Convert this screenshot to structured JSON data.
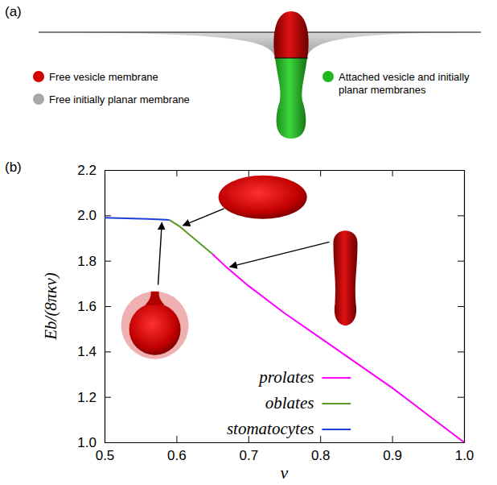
{
  "diagram": {
    "panel_label": "(a)",
    "legend": [
      {
        "label": "Free vesicle membrane",
        "color": "#d40000"
      },
      {
        "label": "Free initially planar membrane",
        "color": "#a8a8a8"
      },
      {
        "label": "Attached vesicle and initially planar membranes",
        "color": "#1fb81f"
      }
    ]
  },
  "chart_data": {
    "type": "line",
    "panel_label": "(b)",
    "x_label": "v",
    "y_label": "Eb/(8πκv)",
    "xlim": [
      0.5,
      1.0
    ],
    "xticks": [
      0.5,
      0.6,
      0.7,
      0.8,
      0.9,
      {
        "value": 1.0,
        "label": "1.0"
      }
    ],
    "ylim": [
      1.0,
      2.2
    ],
    "yticks": [
      {
        "value": 1.0,
        "label": "1.0"
      },
      1.2,
      1.4,
      1.6,
      1.8,
      {
        "value": 2.0,
        "label": "2.0"
      },
      2.2
    ],
    "grid": false,
    "legend": "lower center",
    "series": [
      {
        "name": "prolates",
        "color": "#ff00ff",
        "line_style": "solid",
        "x": [
          0.65,
          0.67,
          0.7,
          0.75,
          0.8,
          0.85,
          0.9,
          0.95,
          1.0
        ],
        "values": [
          1.83,
          1.77,
          1.69,
          1.57,
          1.46,
          1.35,
          1.24,
          1.12,
          1.0
        ]
      },
      {
        "name": "oblates",
        "color": "#5a9a28",
        "line_style": "solid",
        "x": [
          0.59,
          0.605,
          0.62,
          0.635,
          0.65
        ],
        "values": [
          1.98,
          1.95,
          1.91,
          1.87,
          1.83
        ]
      },
      {
        "name": "stomatocytes",
        "color": "#1f3fdc",
        "line_style": "solid",
        "x": [
          0.5,
          0.52,
          0.54,
          0.56,
          0.58,
          0.59
        ],
        "values": [
          1.99,
          1.988,
          1.986,
          1.984,
          1.982,
          1.98
        ]
      }
    ]
  }
}
